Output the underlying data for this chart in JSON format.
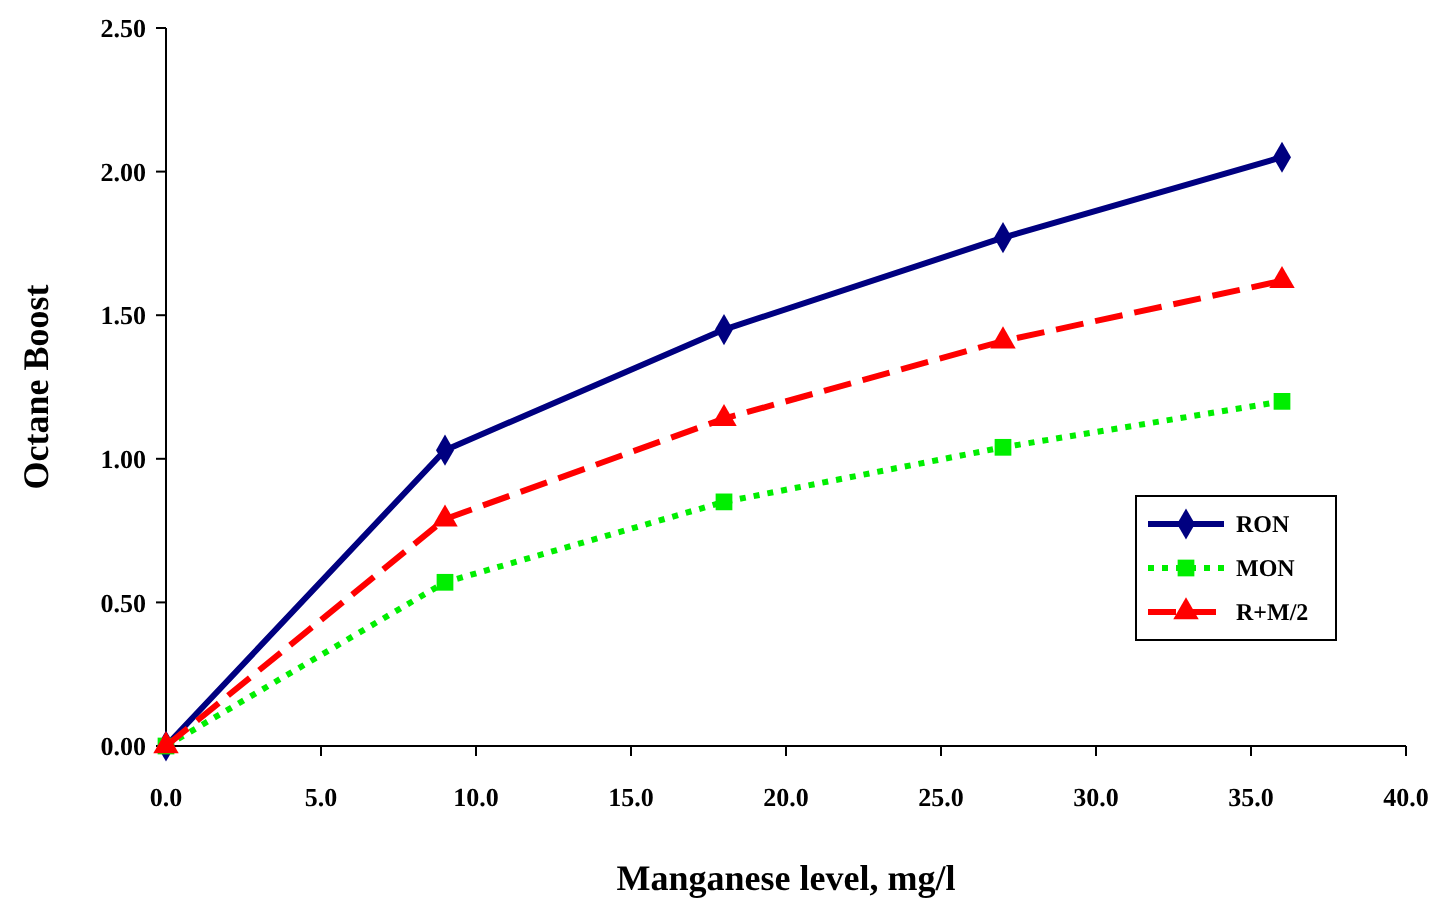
{
  "chart_data": {
    "type": "line",
    "xlabel": "Manganese level, mg/l",
    "ylabel": "Octane Boost",
    "x": [
      0,
      9,
      18,
      27,
      36
    ],
    "series": [
      {
        "name": "RON",
        "color": "#000080",
        "values": [
          0,
          1.03,
          1.45,
          1.77,
          2.05
        ],
        "marker": "diamond",
        "line_style": "solid"
      },
      {
        "name": "MON",
        "color": "#00ee00",
        "values": [
          0,
          0.57,
          0.85,
          1.04,
          1.2
        ],
        "marker": "square",
        "line_style": "dotted"
      },
      {
        "name": "R+M/2",
        "color": "#ff0000",
        "values": [
          0,
          0.79,
          1.14,
          1.41,
          1.62
        ],
        "marker": "triangle",
        "line_style": "dashed"
      }
    ],
    "xlim": [
      0,
      40
    ],
    "xticks": [
      {
        "value": 0,
        "label": "0.0"
      },
      {
        "value": 5,
        "label": "5.0"
      },
      {
        "value": 10,
        "label": "10.0"
      },
      {
        "value": 15,
        "label": "15.0"
      },
      {
        "value": 20,
        "label": "20.0"
      },
      {
        "value": 25,
        "label": "25.0"
      },
      {
        "value": 30,
        "label": "30.0"
      },
      {
        "value": 35,
        "label": "35.0"
      },
      {
        "value": 40,
        "label": "40.0"
      }
    ],
    "ylim": [
      0,
      2.5
    ],
    "yticks": [
      {
        "value": 0,
        "label": "0.00"
      },
      {
        "value": 0.5,
        "label": "0.50"
      },
      {
        "value": 1,
        "label": "1.00"
      },
      {
        "value": 1.5,
        "label": "1.50"
      },
      {
        "value": 2,
        "label": "2.00"
      },
      {
        "value": 2.5,
        "label": "2.50"
      }
    ],
    "grid": false,
    "legend": "right"
  }
}
